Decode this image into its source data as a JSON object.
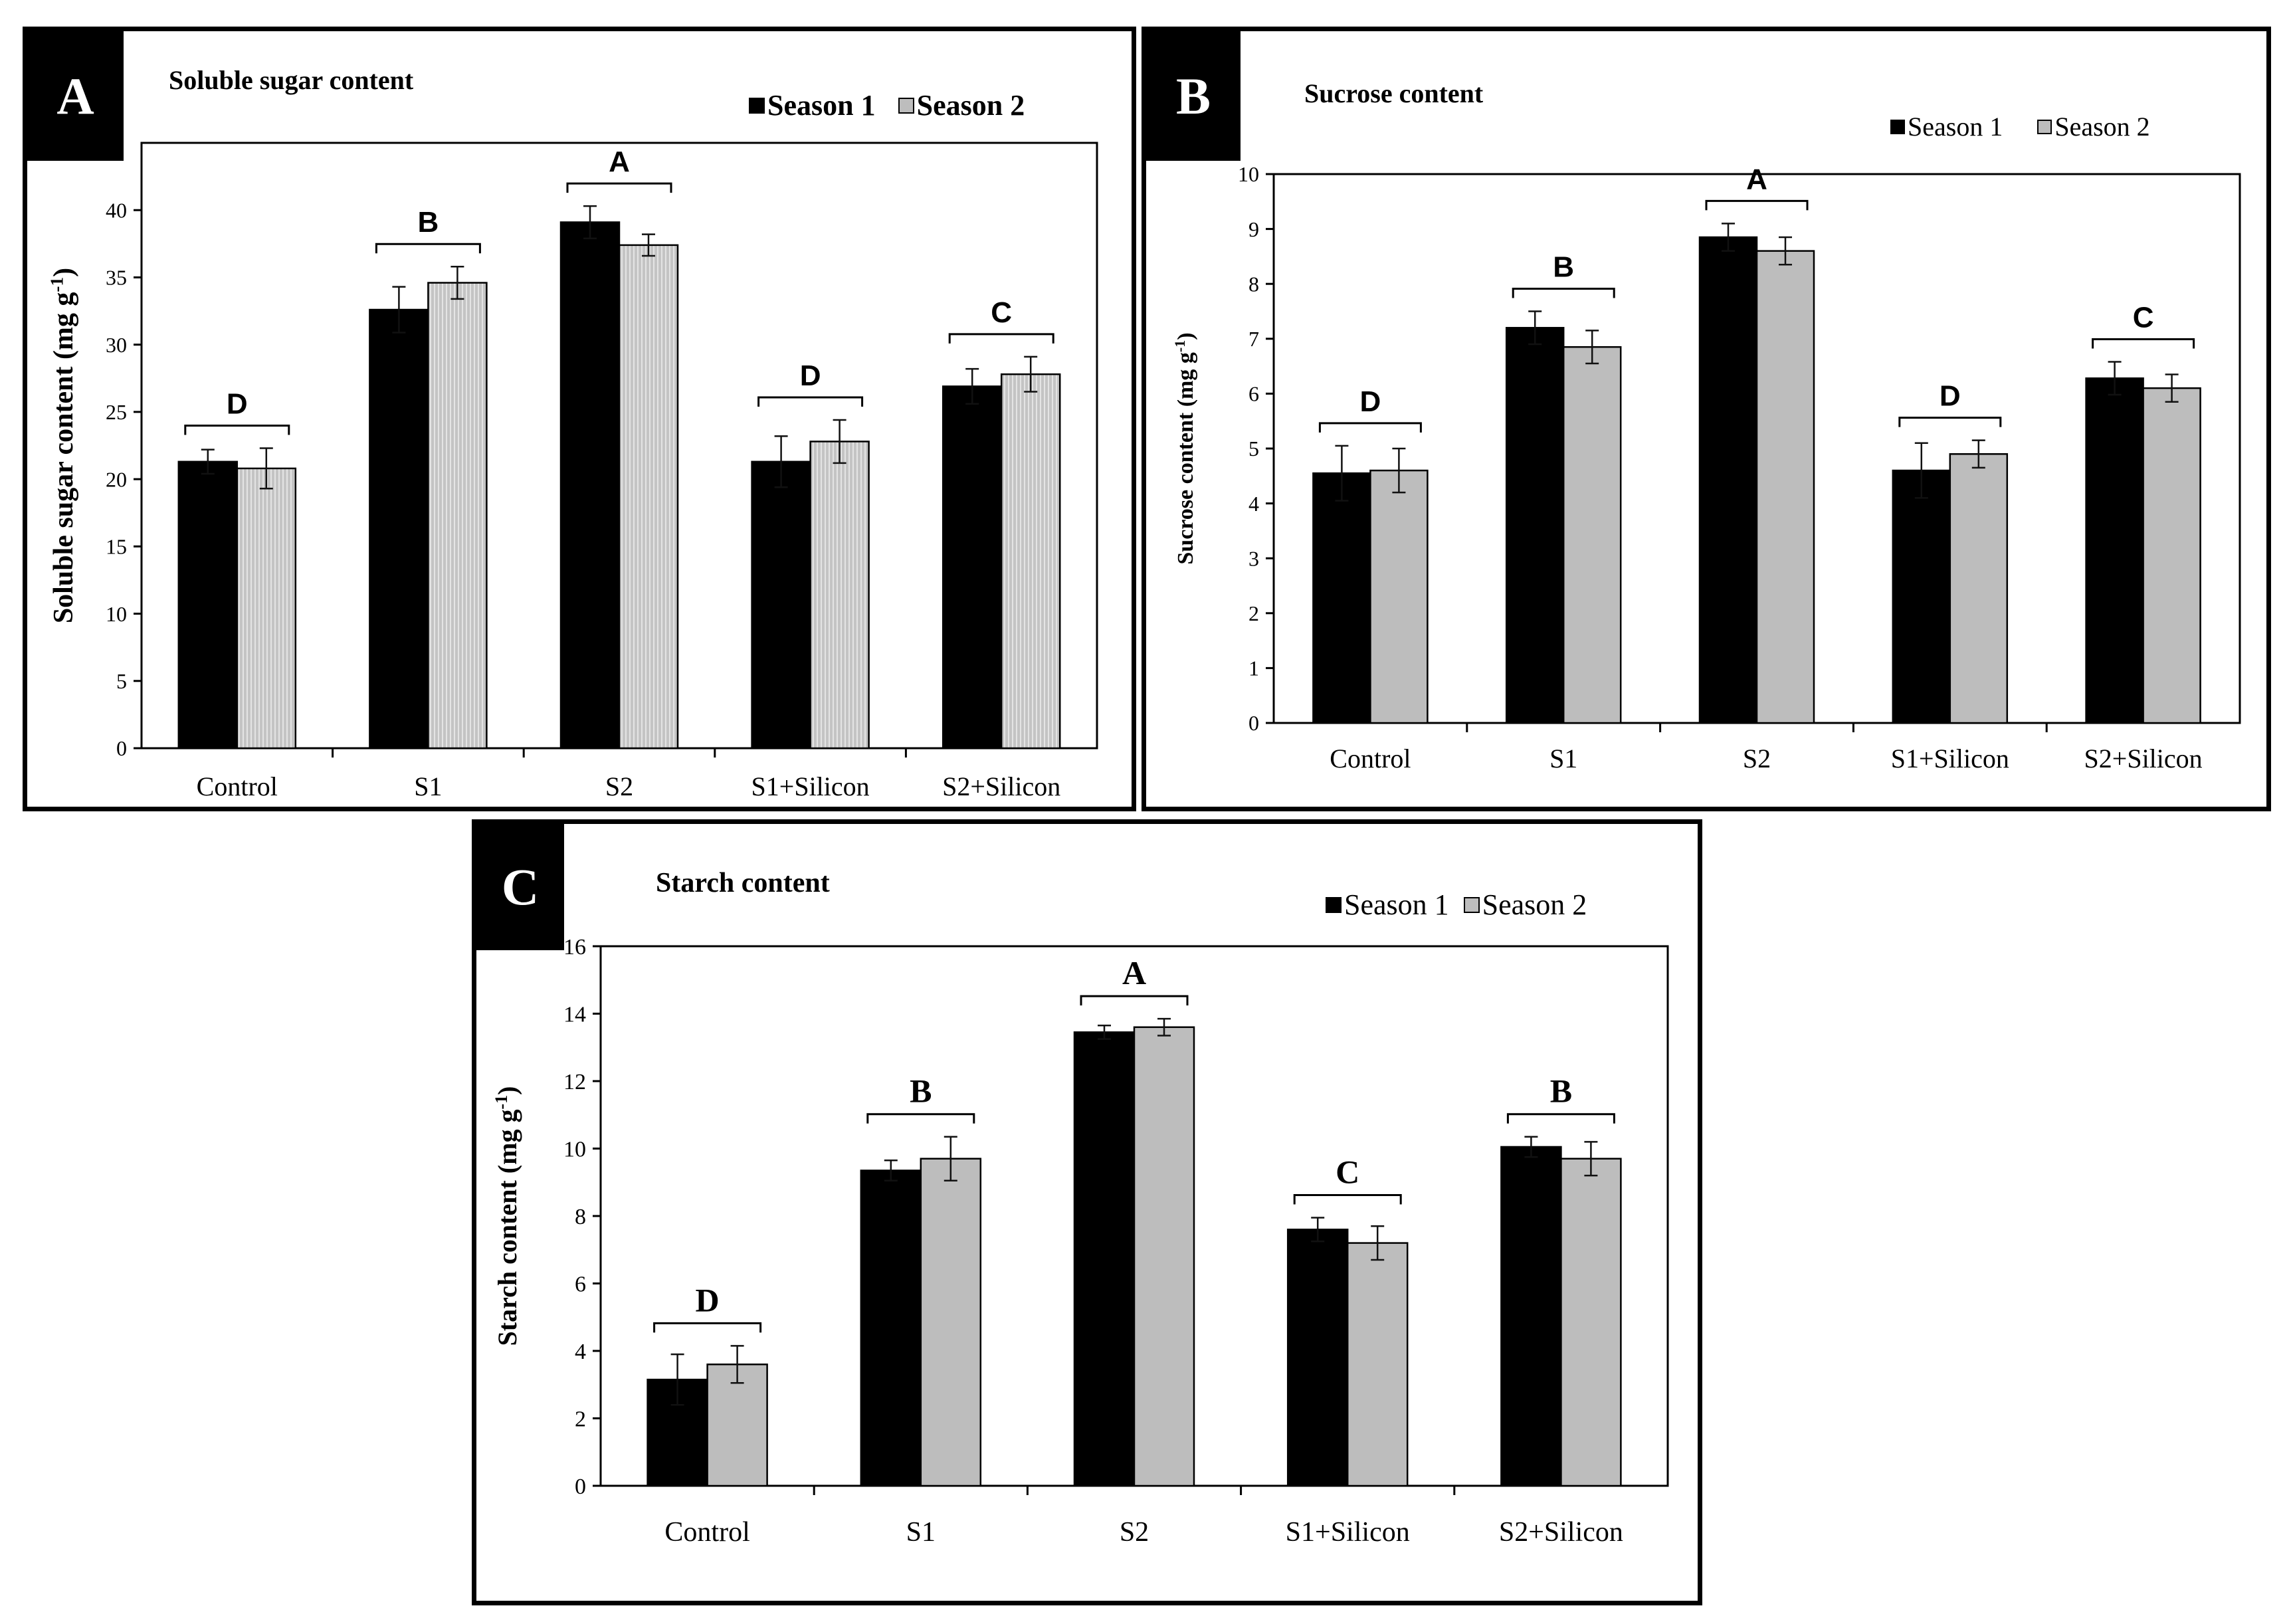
{
  "colors": {
    "season1": "#000000",
    "season2": "#bdbdbd",
    "frame": "#000000"
  },
  "chart_data": [
    {
      "id": "A",
      "type": "bar",
      "panel_label": "A",
      "title": "Soluble sugar content",
      "ylabel": "Soluble sugar content (mg g-1)",
      "ylabel_main": "Soluble sugar content (mg g",
      "ylabel_sup": "-1",
      "ylabel_close": ")",
      "ylim": [
        0,
        45
      ],
      "yticks": [
        0,
        5,
        10,
        15,
        20,
        25,
        30,
        35,
        40
      ],
      "categories": [
        "Control",
        "S1",
        "S2",
        "S1+Silicon",
        "S2+Silicon"
      ],
      "letters": [
        "D",
        "B",
        "A",
        "D",
        "C"
      ],
      "legend": [
        "Season 1",
        "Season 2"
      ],
      "series": [
        {
          "name": "Season 1",
          "values": [
            21.3,
            32.6,
            39.1,
            21.3,
            26.9
          ],
          "errors": [
            0.9,
            1.7,
            1.2,
            1.9,
            1.3
          ]
        },
        {
          "name": "Season 2",
          "values": [
            20.8,
            34.6,
            37.4,
            22.8,
            27.8
          ],
          "errors": [
            1.5,
            1.2,
            0.8,
            1.6,
            1.3
          ]
        }
      ]
    },
    {
      "id": "B",
      "type": "bar",
      "panel_label": "B",
      "title": "Sucrose content",
      "ylabel": "Sucrose content (mg g-1)",
      "ylabel_main": "Sucrose content (mg g",
      "ylabel_sup": "-1",
      "ylabel_close": ")",
      "ylim": [
        0,
        10
      ],
      "yticks": [
        0,
        1,
        2,
        3,
        4,
        5,
        6,
        7,
        8,
        9,
        10
      ],
      "categories": [
        "Control",
        "S1",
        "S2",
        "S1+Silicon",
        "S2+Silicon"
      ],
      "letters": [
        "D",
        "B",
        "A",
        "D",
        "C"
      ],
      "legend": [
        "Season 1",
        "Season 2"
      ],
      "series": [
        {
          "name": "Season 1",
          "values": [
            4.55,
            7.2,
            8.85,
            4.6,
            6.28
          ],
          "errors": [
            0.5,
            0.3,
            0.25,
            0.5,
            0.3
          ]
        },
        {
          "name": "Season 2",
          "values": [
            4.6,
            6.85,
            8.6,
            4.9,
            6.1
          ],
          "errors": [
            0.4,
            0.3,
            0.25,
            0.25,
            0.25
          ]
        }
      ]
    },
    {
      "id": "C",
      "type": "bar",
      "panel_label": "C",
      "title": "Starch content",
      "ylabel": "Starch content (mg g-1)",
      "ylabel_main": "Starch content (mg g",
      "ylabel_sup": "-1",
      "ylabel_close": ")",
      "ylim": [
        0,
        16
      ],
      "yticks": [
        0,
        2,
        4,
        6,
        8,
        10,
        12,
        14,
        16
      ],
      "categories": [
        "Control",
        "S1",
        "S2",
        "S1+Silicon",
        "S2+Silicon"
      ],
      "letters": [
        "D",
        "B",
        "A",
        "C",
        "B"
      ],
      "legend": [
        "Season 1",
        "Season 2"
      ],
      "series": [
        {
          "name": "Season 1",
          "values": [
            3.15,
            9.35,
            13.45,
            7.6,
            10.05
          ],
          "errors": [
            0.75,
            0.3,
            0.2,
            0.35,
            0.3
          ]
        },
        {
          "name": "Season 2",
          "values": [
            3.6,
            9.7,
            13.6,
            7.2,
            9.7
          ],
          "errors": [
            0.55,
            0.65,
            0.25,
            0.5,
            0.5
          ]
        }
      ]
    }
  ]
}
